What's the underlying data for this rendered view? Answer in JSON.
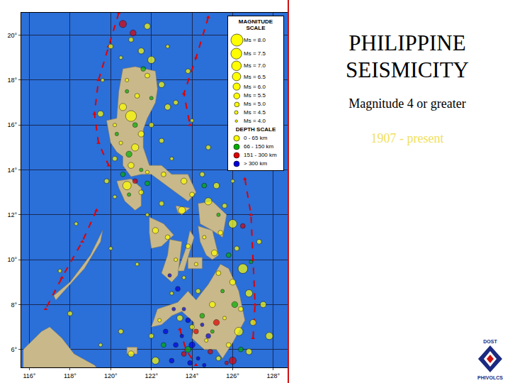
{
  "chart_data": {
    "type": "scatter",
    "title": "PHILIPPINE SEISMICITY",
    "subtitle": "Magnitude 4 or greater",
    "annotations": [
      "1907 - present"
    ],
    "xlim": [
      115.6,
      128.7
    ],
    "xticks": [
      {
        "value": 116,
        "label": "116°"
      },
      {
        "value": 118,
        "label": "118°"
      },
      {
        "value": 120,
        "label": "120°"
      },
      {
        "value": 122,
        "label": "122°"
      },
      {
        "value": 124,
        "label": "124°"
      },
      {
        "value": 126,
        "label": "126°"
      },
      {
        "value": 128,
        "label": "128°"
      }
    ],
    "ylim": [
      5.2,
      21
    ],
    "yticks": [
      {
        "value": 6,
        "label": "6°"
      },
      {
        "value": 8,
        "label": "8°"
      },
      {
        "value": 10,
        "label": "10°"
      },
      {
        "value": 12,
        "label": "12°"
      },
      {
        "value": 14,
        "label": "14°"
      },
      {
        "value": 16,
        "label": "16°"
      },
      {
        "value": 18,
        "label": "18°"
      },
      {
        "value": 20,
        "label": "20°"
      }
    ],
    "grid": true,
    "magnitude_scale_title": "MAGNITUDE SCALE",
    "magnitude_scale": [
      {
        "label": "Ms = 8.0",
        "value": 8.0
      },
      {
        "label": "Ms = 7.5",
        "value": 7.5
      },
      {
        "label": "Ms = 7.0",
        "value": 7.0
      },
      {
        "label": "Ms = 6.5",
        "value": 6.5
      },
      {
        "label": "Ms = 6.0",
        "value": 6.0
      },
      {
        "label": "Ms = 5.5",
        "value": 5.5
      },
      {
        "label": "Ms = 5.0",
        "value": 5.0
      },
      {
        "label": "Ms = 4.5",
        "value": 4.5
      },
      {
        "label": "Ms = 4.0",
        "value": 4.0
      }
    ],
    "depth_scale_title": "DEPTH SCALE",
    "series": [
      {
        "name": "0 - 65 km",
        "color": "#ffff00",
        "x": [
          121.0,
          121.5,
          120.5,
          122.0,
          121.8,
          120.8,
          122.5,
          121.3,
          120.6,
          121.0,
          122.0,
          120.2,
          121.5,
          122.5,
          120.5,
          121.2,
          120.2,
          121.0,
          121.8,
          122.6,
          123.6,
          124.0,
          123.0,
          124.5,
          125.2,
          124.8,
          125.6,
          126.0,
          125.4,
          124.6,
          125.1,
          126.2,
          126.5,
          126.0,
          126.8,
          126.4,
          127.0,
          126.3,
          125.8,
          126.8,
          125.3,
          124.7,
          124.0,
          123.4,
          122.4,
          122.0,
          123.0,
          124.3,
          125.0,
          125.6,
          125.3,
          124.2,
          123.8,
          123.2,
          122.8,
          122.2,
          121.8,
          122.5,
          123.5,
          121.5,
          120.8,
          120.2,
          119.8,
          119.5,
          119.6,
          120.0,
          121.8,
          122.8,
          123.2,
          124.0,
          122.8,
          118.3,
          117.5,
          118.0,
          119.5,
          120.5,
          121.0,
          122.2,
          127.3,
          127.5,
          127.8,
          123.6,
          121.3,
          120.0,
          124.8,
          126.0,
          123.8
        ],
        "y": [
          19.8,
          19.3,
          19.0,
          18.9,
          18.2,
          18.0,
          17.8,
          17.3,
          16.8,
          16.4,
          16.0,
          16.0,
          15.6,
          15.3,
          15.2,
          15.0,
          14.5,
          14.2,
          13.9,
          13.8,
          13.5,
          12.9,
          14.5,
          13.8,
          13.3,
          12.6,
          12.4,
          11.6,
          11.2,
          11.0,
          10.3,
          10.5,
          9.6,
          9.0,
          8.5,
          7.8,
          7.2,
          6.8,
          6.2,
          5.9,
          5.6,
          6.4,
          7.0,
          7.4,
          7.3,
          6.6,
          8.5,
          8.6,
          8.0,
          7.4,
          9.4,
          9.8,
          10.6,
          10.0,
          11.0,
          11.3,
          12.0,
          12.5,
          12.2,
          13.0,
          13.3,
          12.8,
          13.5,
          16.5,
          18.0,
          19.5,
          20.4,
          19.5,
          17.0,
          16.2,
          16.8,
          11.6,
          9.5,
          7.6,
          6.2,
          6.8,
          5.8,
          5.5,
          10.8,
          8.0,
          6.6,
          9.2,
          9.8,
          10.5,
          15.0,
          13.5,
          18.4
        ],
        "magnitude": [
          5.0,
          5.5,
          4.5,
          6.0,
          5.0,
          4.5,
          5.5,
          5.0,
          6.0,
          7.5,
          5.0,
          4.5,
          5.5,
          5.0,
          4.5,
          6.0,
          5.0,
          5.5,
          4.5,
          5.0,
          5.5,
          5.0,
          4.5,
          5.0,
          5.5,
          6.0,
          5.0,
          6.5,
          5.0,
          4.5,
          5.5,
          5.0,
          7.0,
          5.5,
          6.0,
          5.0,
          5.5,
          6.5,
          5.0,
          5.5,
          5.0,
          4.5,
          5.0,
          5.5,
          4.5,
          5.0,
          4.5,
          5.0,
          5.5,
          4.5,
          5.0,
          4.5,
          5.0,
          4.5,
          5.0,
          5.5,
          4.5,
          5.0,
          6.0,
          5.0,
          6.5,
          4.5,
          5.0,
          5.5,
          4.5,
          5.0,
          5.5,
          4.5,
          5.0,
          4.5,
          5.5,
          4.5,
          4.5,
          5.0,
          4.5,
          5.0,
          5.5,
          6.0,
          5.0,
          5.5,
          6.0,
          4.5,
          4.5,
          4.5,
          5.0,
          4.5,
          5.0
        ]
      },
      {
        "name": "66 - 150 km",
        "color": "#00b000",
        "x": [
          121.6,
          120.8,
          121.2,
          120.3,
          120.9,
          121.5,
          120.6,
          120.9,
          121.8,
          122.0,
          124.6,
          125.3,
          125.8,
          126.1,
          125.5,
          124.5,
          123.8,
          125.0,
          126.4,
          126.9,
          122.6
        ],
        "y": [
          18.5,
          17.5,
          16.0,
          15.6,
          14.7,
          14.0,
          13.8,
          12.9,
          13.4,
          17.2,
          13.3,
          12.0,
          10.2,
          8.0,
          8.6,
          7.5,
          6.0,
          6.8,
          6.0,
          9.9,
          6.2
        ],
        "magnitude": [
          5.0,
          4.5,
          5.0,
          4.5,
          5.5,
          4.5,
          5.0,
          4.5,
          5.0,
          4.5,
          5.0,
          4.5,
          5.0,
          5.5,
          4.5,
          5.0,
          5.5,
          4.5,
          5.0,
          4.5,
          5.0
        ]
      },
      {
        "name": "151 - 300 km",
        "color": "#e00000",
        "x": [
          120.6,
          121.1,
          124.2,
          125.2,
          124.9,
          126.0,
          123.6,
          125.7,
          121.2,
          126.5
        ],
        "y": [
          20.5,
          20.1,
          6.8,
          7.2,
          5.9,
          5.5,
          5.8,
          5.4,
          13.5,
          11.5
        ],
        "magnitude": [
          6.0,
          5.5,
          5.0,
          5.5,
          5.0,
          6.0,
          5.0,
          4.5,
          5.0,
          5.0
        ]
      },
      {
        "name": "> 300 km",
        "color": "#0000e0",
        "x": [
          123.2,
          123.5,
          123.8,
          124.0,
          124.3,
          123.9,
          124.6,
          123.1,
          123.3,
          122.9,
          123.0,
          124.5,
          124.8,
          123.6,
          122.7
        ],
        "y": [
          6.2,
          6.6,
          7.3,
          6.2,
          5.6,
          5.4,
          5.3,
          7.8,
          8.7,
          9.3,
          5.5,
          7.1,
          6.6,
          7.8,
          6.8
        ],
        "magnitude": [
          5.0,
          4.5,
          5.0,
          5.5,
          4.5,
          5.0,
          4.5,
          4.5,
          5.0,
          4.5,
          5.0,
          4.5,
          5.0,
          4.5,
          5.0
        ]
      }
    ],
    "land": [
      [
        [
          120.6,
          18.5
        ],
        [
          121.2,
          18.6
        ],
        [
          122.2,
          18.4
        ],
        [
          122.3,
          17.6
        ],
        [
          122.2,
          17.0
        ],
        [
          121.8,
          16.3
        ],
        [
          121.6,
          15.8
        ],
        [
          121.6,
          15.0
        ],
        [
          121.9,
          14.2
        ],
        [
          122.5,
          14.2
        ],
        [
          123.0,
          13.8
        ],
        [
          123.8,
          13.8
        ],
        [
          124.2,
          13.0
        ],
        [
          123.8,
          12.6
        ],
        [
          123.2,
          13.0
        ],
        [
          122.6,
          13.4
        ],
        [
          122.0,
          13.8
        ],
        [
          121.5,
          13.8
        ],
        [
          121.0,
          13.7
        ],
        [
          120.6,
          14.2
        ],
        [
          120.6,
          14.6
        ],
        [
          120.3,
          14.8
        ],
        [
          120.0,
          15.2
        ],
        [
          119.8,
          16.2
        ],
        [
          120.3,
          16.3
        ],
        [
          120.4,
          17.5
        ],
        [
          120.6,
          18.5
        ]
      ],
      [
        [
          120.3,
          13.5
        ],
        [
          121.0,
          13.6
        ],
        [
          121.5,
          13.2
        ],
        [
          121.5,
          12.4
        ],
        [
          121.2,
          12.2
        ],
        [
          120.7,
          12.6
        ],
        [
          120.4,
          13.2
        ],
        [
          120.3,
          13.5
        ]
      ],
      [
        [
          121.9,
          11.9
        ],
        [
          122.6,
          11.6
        ],
        [
          123.1,
          11.1
        ],
        [
          122.5,
          10.6
        ],
        [
          122.0,
          10.5
        ],
        [
          121.9,
          11.2
        ],
        [
          121.9,
          11.9
        ]
      ],
      [
        [
          122.9,
          10.9
        ],
        [
          123.5,
          10.8
        ],
        [
          123.3,
          9.3
        ],
        [
          123.0,
          9.0
        ],
        [
          122.5,
          9.4
        ],
        [
          122.8,
          10.2
        ],
        [
          122.9,
          10.9
        ]
      ],
      [
        [
          123.9,
          11.3
        ],
        [
          124.1,
          11.0
        ],
        [
          123.6,
          9.5
        ],
        [
          123.3,
          9.5
        ],
        [
          123.7,
          10.5
        ],
        [
          123.9,
          11.3
        ]
      ],
      [
        [
          123.8,
          10.1
        ],
        [
          124.5,
          10.1
        ],
        [
          124.5,
          9.6
        ],
        [
          123.8,
          9.6
        ],
        [
          123.8,
          10.1
        ]
      ],
      [
        [
          124.3,
          12.5
        ],
        [
          125.0,
          12.6
        ],
        [
          125.7,
          12.0
        ],
        [
          125.5,
          11.0
        ],
        [
          125.0,
          11.3
        ],
        [
          124.4,
          11.6
        ],
        [
          124.3,
          12.5
        ]
      ],
      [
        [
          124.3,
          11.5
        ],
        [
          125.0,
          11.3
        ],
        [
          125.3,
          10.2
        ],
        [
          125.0,
          10.0
        ],
        [
          124.7,
          10.2
        ],
        [
          124.4,
          10.8
        ],
        [
          124.3,
          11.5
        ]
      ],
      [
        [
          123.2,
          12.4
        ],
        [
          123.9,
          12.3
        ],
        [
          123.5,
          12.0
        ],
        [
          123.3,
          12.1
        ],
        [
          123.2,
          12.4
        ]
      ],
      [
        [
          117.2,
          8.4
        ],
        [
          118.0,
          9.0
        ],
        [
          119.0,
          10.2
        ],
        [
          119.6,
          11.3
        ],
        [
          119.5,
          10.8
        ],
        [
          118.7,
          9.6
        ],
        [
          117.8,
          8.7
        ],
        [
          117.3,
          8.2
        ],
        [
          117.2,
          8.4
        ]
      ],
      [
        [
          122.0,
          7.0
        ],
        [
          122.3,
          7.8
        ],
        [
          123.3,
          8.1
        ],
        [
          123.8,
          8.6
        ],
        [
          124.2,
          8.2
        ],
        [
          124.8,
          8.9
        ],
        [
          125.4,
          9.8
        ],
        [
          125.8,
          9.6
        ],
        [
          126.3,
          8.6
        ],
        [
          126.6,
          7.3
        ],
        [
          126.0,
          6.3
        ],
        [
          125.5,
          5.6
        ],
        [
          125.2,
          6.0
        ],
        [
          124.6,
          6.0
        ],
        [
          124.0,
          6.5
        ],
        [
          124.1,
          7.2
        ],
        [
          123.5,
          7.7
        ],
        [
          123.0,
          7.5
        ],
        [
          122.5,
          7.1
        ],
        [
          122.0,
          7.0
        ]
      ],
      [
        [
          115.7,
          5.2
        ],
        [
          115.7,
          6.0
        ],
        [
          116.6,
          6.8
        ],
        [
          117.0,
          7.0
        ],
        [
          117.6,
          6.5
        ],
        [
          118.2,
          5.8
        ],
        [
          119.2,
          5.3
        ],
        [
          119.3,
          5.2
        ],
        [
          115.7,
          5.2
        ]
      ],
      [
        [
          120.8,
          6.1
        ],
        [
          121.3,
          6.1
        ],
        [
          121.3,
          5.8
        ],
        [
          120.8,
          5.8
        ],
        [
          120.8,
          6.1
        ]
      ]
    ],
    "trenches": [
      [
        [
          120.4,
          21.0
        ],
        [
          119.9,
          19.5
        ],
        [
          119.4,
          18.0
        ],
        [
          119.2,
          16.5
        ],
        [
          119.4,
          15.2
        ],
        [
          119.9,
          14.2
        ]
      ],
      [
        [
          119.3,
          12.2
        ],
        [
          118.6,
          10.8
        ],
        [
          117.6,
          9.2
        ],
        [
          116.8,
          7.8
        ]
      ],
      [
        [
          124.8,
          20.8
        ],
        [
          124.2,
          19.0
        ],
        [
          123.6,
          17.4
        ],
        [
          123.9,
          16.0
        ]
      ],
      [
        [
          126.6,
          13.6
        ],
        [
          126.9,
          12.0
        ],
        [
          127.0,
          10.0
        ],
        [
          127.1,
          8.0
        ],
        [
          127.0,
          6.5
        ]
      ],
      [
        [
          123.4,
          6.9
        ],
        [
          123.7,
          6.0
        ],
        [
          124.2,
          5.3
        ]
      ]
    ],
    "logo": {
      "top": "DOST",
      "bottom": "PHIVOLCS"
    }
  }
}
